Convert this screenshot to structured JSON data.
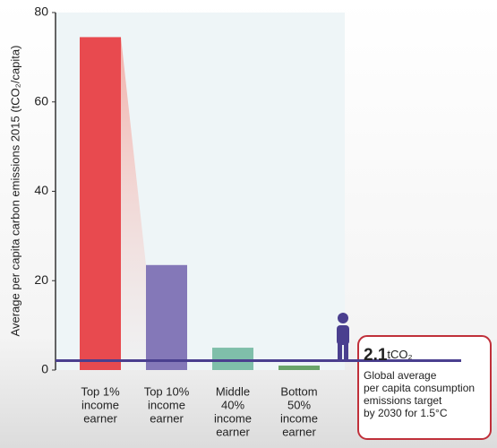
{
  "chart_data": {
    "type": "bar",
    "y_label": "Average per capita carbon emissions 2015 (tCO₂/capita)",
    "categories": [
      [
        "Top 1%",
        "income",
        "earner"
      ],
      [
        "Top 10%",
        "income",
        "earner"
      ],
      [
        "Middle",
        "40%",
        "income",
        "earner"
      ],
      [
        "Bottom",
        "50%",
        "income",
        "earner"
      ]
    ],
    "values": [
      74.5,
      23.5,
      5,
      1
    ],
    "colors": [
      "#e84a4f",
      "#8478b8",
      "#7fbfaa",
      "#6aa56a"
    ],
    "ylim": [
      0,
      80
    ],
    "yticks": [
      0,
      20,
      40,
      60,
      80
    ],
    "grid": false,
    "target": {
      "value": 2.1,
      "unit": "tCO₂",
      "color": "#4a3f8f",
      "label_lines": [
        "Global average",
        "per capita consumption",
        "emissions target",
        "by 2030 for 1.5°C"
      ]
    }
  }
}
